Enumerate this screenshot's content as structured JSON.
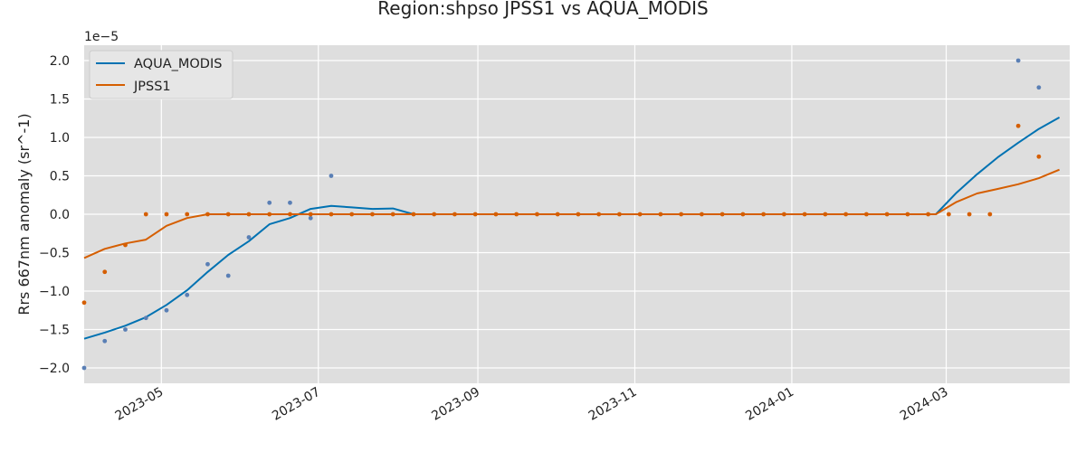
{
  "chart_data": {
    "type": "line",
    "title": "Region:shpso JPSS1 vs AQUA_MODIS",
    "xlabel": "",
    "ylabel": "Rrs 667nm anomaly (sr^-1)",
    "y_offset_label": "1e−5",
    "y_scale_factor": 1e-05,
    "xlim": [
      "2023-04-01",
      "2024-04-18"
    ],
    "ylim": [
      -2.2,
      2.2
    ],
    "x_ticks": [
      "2023-05-01",
      "2023-07-01",
      "2023-09-01",
      "2023-11-01",
      "2024-01-01",
      "2024-03-01"
    ],
    "x_tick_labels": [
      "2023-05",
      "2023-07",
      "2023-09",
      "2023-11",
      "2024-01",
      "2024-03"
    ],
    "y_ticks": [
      -2.0,
      -1.5,
      -1.0,
      -0.5,
      0.0,
      0.5,
      1.0,
      1.5,
      2.0
    ],
    "y_tick_labels": [
      "−2.0",
      "−1.5",
      "−1.0",
      "−0.5",
      "0.0",
      "0.5",
      "1.0",
      "1.5",
      "2.0"
    ],
    "grid": true,
    "legend_position": "top-left",
    "series": [
      {
        "name": "AQUA_MODIS",
        "color": "#0072b2",
        "point_color": "#5a7fb5",
        "line": [
          {
            "x": "2023-04-01",
            "y": -1.62
          },
          {
            "x": "2023-04-09",
            "y": -1.54
          },
          {
            "x": "2023-04-17",
            "y": -1.45
          },
          {
            "x": "2023-04-25",
            "y": -1.34
          },
          {
            "x": "2023-05-03",
            "y": -1.18
          },
          {
            "x": "2023-05-11",
            "y": -0.99
          },
          {
            "x": "2023-05-19",
            "y": -0.75
          },
          {
            "x": "2023-05-27",
            "y": -0.53
          },
          {
            "x": "2023-06-04",
            "y": -0.35
          },
          {
            "x": "2023-06-12",
            "y": -0.13
          },
          {
            "x": "2023-06-20",
            "y": -0.05
          },
          {
            "x": "2023-06-28",
            "y": 0.07
          },
          {
            "x": "2023-07-06",
            "y": 0.11
          },
          {
            "x": "2023-07-14",
            "y": 0.09
          },
          {
            "x": "2023-07-22",
            "y": 0.07
          },
          {
            "x": "2023-07-30",
            "y": 0.075
          },
          {
            "x": "2023-08-07",
            "y": 0.0
          },
          {
            "x": "2024-02-26",
            "y": 0.0
          },
          {
            "x": "2024-03-05",
            "y": 0.28
          },
          {
            "x": "2024-03-13",
            "y": 0.52
          },
          {
            "x": "2024-03-21",
            "y": 0.74
          },
          {
            "x": "2024-03-29",
            "y": 0.93
          },
          {
            "x": "2024-04-06",
            "y": 1.11
          },
          {
            "x": "2024-04-14",
            "y": 1.26
          }
        ],
        "points": [
          {
            "x": "2023-04-01",
            "y": -2.0
          },
          {
            "x": "2023-04-09",
            "y": -1.65
          },
          {
            "x": "2023-04-17",
            "y": -1.5
          },
          {
            "x": "2023-04-25",
            "y": -1.35
          },
          {
            "x": "2023-05-03",
            "y": -1.25
          },
          {
            "x": "2023-05-11",
            "y": -1.05
          },
          {
            "x": "2023-05-19",
            "y": -0.65
          },
          {
            "x": "2023-05-27",
            "y": -0.8
          },
          {
            "x": "2023-06-04",
            "y": -0.3
          },
          {
            "x": "2023-06-12",
            "y": 0.15
          },
          {
            "x": "2023-06-20",
            "y": 0.15
          },
          {
            "x": "2023-06-28",
            "y": -0.05
          },
          {
            "x": "2023-07-06",
            "y": 0.5
          },
          {
            "x": "2024-03-29",
            "y": 2.0
          },
          {
            "x": "2024-04-06",
            "y": 1.65
          }
        ]
      },
      {
        "name": "JPSS1",
        "color": "#d55e00",
        "point_color": "#d55e00",
        "line": [
          {
            "x": "2023-04-01",
            "y": -0.57
          },
          {
            "x": "2023-04-09",
            "y": -0.45
          },
          {
            "x": "2023-04-17",
            "y": -0.38
          },
          {
            "x": "2023-04-25",
            "y": -0.33
          },
          {
            "x": "2023-05-03",
            "y": -0.15
          },
          {
            "x": "2023-05-11",
            "y": -0.05
          },
          {
            "x": "2023-05-19",
            "y": 0.0
          },
          {
            "x": "2024-02-26",
            "y": 0.0
          },
          {
            "x": "2024-03-05",
            "y": 0.16
          },
          {
            "x": "2024-03-13",
            "y": 0.27
          },
          {
            "x": "2024-03-21",
            "y": 0.33
          },
          {
            "x": "2024-03-29",
            "y": 0.39
          },
          {
            "x": "2024-04-06",
            "y": 0.47
          },
          {
            "x": "2024-04-14",
            "y": 0.58
          }
        ],
        "points": [
          {
            "x": "2023-04-01",
            "y": -1.15
          },
          {
            "x": "2023-04-09",
            "y": -0.75
          },
          {
            "x": "2023-04-17",
            "y": -0.4
          },
          {
            "x": "2023-04-25",
            "y": 0.0
          },
          {
            "x": "2023-05-03",
            "y": 0.0
          },
          {
            "x": "2023-05-11",
            "y": 0.0
          },
          {
            "x": "2024-03-29",
            "y": 1.15
          },
          {
            "x": "2024-04-06",
            "y": 0.75
          }
        ],
        "zero_points_from": "2023-05-19",
        "zero_points_to": "2024-03-21"
      }
    ]
  }
}
